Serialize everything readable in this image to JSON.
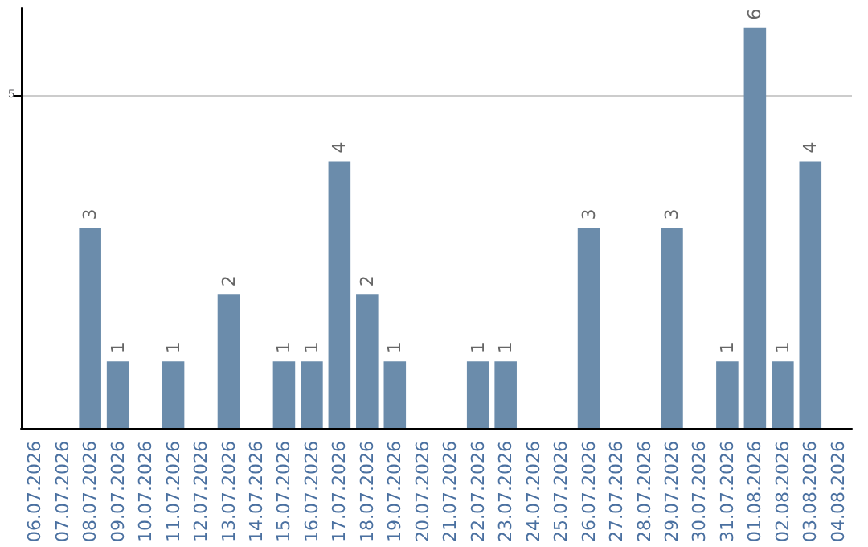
{
  "chart_data": {
    "type": "bar",
    "categories": [
      "06.07.2026",
      "07.07.2026",
      "08.07.2026",
      "09.07.2026",
      "10.07.2026",
      "11.07.2026",
      "12.07.2026",
      "13.07.2026",
      "14.07.2026",
      "15.07.2026",
      "16.07.2026",
      "17.07.2026",
      "18.07.2026",
      "19.07.2026",
      "20.07.2026",
      "21.07.2026",
      "22.07.2026",
      "23.07.2026",
      "24.07.2026",
      "25.07.2026",
      "26.07.2026",
      "27.07.2026",
      "28.07.2026",
      "29.07.2026",
      "30.07.2026",
      "31.07.2026",
      "01.08.2026",
      "02.08.2026",
      "03.08.2026",
      "04.08.2026"
    ],
    "values": [
      null,
      null,
      3,
      1,
      null,
      1,
      null,
      2,
      null,
      1,
      1,
      4,
      2,
      1,
      null,
      null,
      1,
      1,
      null,
      null,
      3,
      null,
      null,
      3,
      null,
      1,
      6,
      1,
      4,
      null
    ],
    "color": "#6b8cab",
    "ylim": [
      0,
      6.3
    ],
    "yticks": [
      5
    ],
    "grid": "y",
    "data_labels": true
  }
}
